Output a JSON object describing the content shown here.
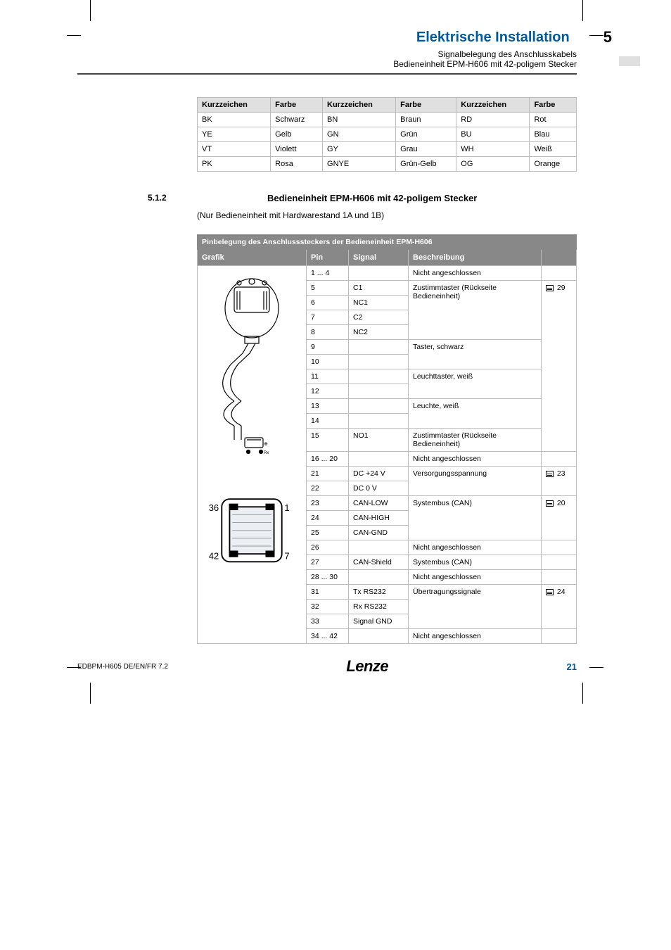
{
  "header": {
    "title": "Elektrische Installation",
    "chapter": "5",
    "sub1": "Signalbelegung des Anschlusskabels",
    "sub2": "Bedieneinheit EPM-H606 mit 42-poligem Stecker"
  },
  "color_table": {
    "header_color": "#e0e0e0",
    "border_color": "#bbbbbb",
    "headers": [
      "Kurzzeichen",
      "Farbe",
      "Kurzzeichen",
      "Farbe",
      "Kurzzeichen",
      "Farbe"
    ],
    "rows": [
      [
        "BK",
        "Schwarz",
        "BN",
        "Braun",
        "RD",
        "Rot"
      ],
      [
        "YE",
        "Gelb",
        "GN",
        "Grün",
        "BU",
        "Blau"
      ],
      [
        "VT",
        "Violett",
        "GY",
        "Grau",
        "WH",
        "Weiß"
      ],
      [
        "PK",
        "Rosa",
        "GNYE",
        "Grün-Gelb",
        "OG",
        "Orange"
      ]
    ]
  },
  "section": {
    "number": "5.1.2",
    "title": "Bedieneinheit EPM-H606 mit 42-poligem Stecker",
    "subtitle": "(Nur Bedieneinheit mit Hardwarestand 1A und 1B)"
  },
  "pin_table": {
    "header_bg": "#888888",
    "header_fg": "#ffffff",
    "border_color": "#bbbbbb",
    "title": "Pinbelegung des Anschlusssteckers der Bedieneinheit EPM-H606",
    "headers": [
      "Grafik",
      "Pin",
      "Signal",
      "Beschreibung",
      ""
    ],
    "connector_labels": {
      "tl": "36",
      "tr": "1",
      "bl": "42",
      "br": "7"
    },
    "rows": [
      {
        "pin": "1 ... 4",
        "signal": "",
        "desc": "Nicht angeschlossen",
        "ref": ""
      },
      {
        "pin": "5",
        "signal": "C1",
        "desc_span_start": true
      },
      {
        "pin": "6",
        "signal": "NC1"
      },
      {
        "pin": "7",
        "signal": "C2",
        "desc": "Zustimmtaster (Rückseite Bedieneinheit)",
        "desc_rows": 4
      },
      {
        "pin": "8",
        "signal": "NC2"
      },
      {
        "pin": "9",
        "signal": "",
        "desc": "Taster, schwarz",
        "desc_rows": 2,
        "ref_start": true
      },
      {
        "pin": "10",
        "signal": ""
      },
      {
        "pin": "11",
        "signal": "",
        "desc": "Leuchttaster, weiß",
        "desc_rows": 2
      },
      {
        "pin": "12",
        "signal": ""
      },
      {
        "pin": "13",
        "signal": "",
        "desc": "Leuchte, weiß",
        "desc_rows": 2
      },
      {
        "pin": "14",
        "signal": ""
      },
      {
        "pin": "15",
        "signal": "NO1",
        "desc": "Zustimmtaster (Rückseite Bedieneinheit)",
        "ref": "29",
        "ref_rows": 11
      },
      {
        "pin": "16 ... 20",
        "signal": "",
        "desc": "Nicht angeschlossen",
        "ref": ""
      },
      {
        "pin": "21",
        "signal": "DC +24 V",
        "desc": "Versorgungsspannung",
        "desc_rows": 2,
        "ref": "23",
        "ref_rows": 2
      },
      {
        "pin": "22",
        "signal": "DC 0 V"
      },
      {
        "pin": "23",
        "signal": "CAN-LOW",
        "desc": "Systembus (CAN)",
        "desc_rows": 3,
        "ref": "20",
        "ref_rows": 3
      },
      {
        "pin": "24",
        "signal": "CAN-HIGH"
      },
      {
        "pin": "25",
        "signal": "CAN-GND"
      },
      {
        "pin": "26",
        "signal": "",
        "desc": "Nicht angeschlossen",
        "ref": ""
      },
      {
        "pin": "27",
        "signal": "CAN-Shield",
        "desc": "Systembus (CAN)",
        "ref": ""
      },
      {
        "pin": "28 ... 30",
        "signal": "",
        "desc": "Nicht angeschlossen",
        "ref": ""
      },
      {
        "pin": "31",
        "signal": "Tx RS232",
        "desc": "Übertragungssignale",
        "desc_rows": 3,
        "ref": "24",
        "ref_rows": 3
      },
      {
        "pin": "32",
        "signal": "Rx RS232"
      },
      {
        "pin": "33",
        "signal": "Signal GND"
      },
      {
        "pin": "34 ... 42",
        "signal": "",
        "desc": "Nicht angeschlossen",
        "ref": ""
      }
    ]
  },
  "footer": {
    "left": "EDBPM-H605   DE/EN/FR   7.2",
    "logo": "Lenze",
    "page": "21"
  },
  "colors": {
    "title_color": "#005aa0",
    "rule_color": "#444444"
  }
}
